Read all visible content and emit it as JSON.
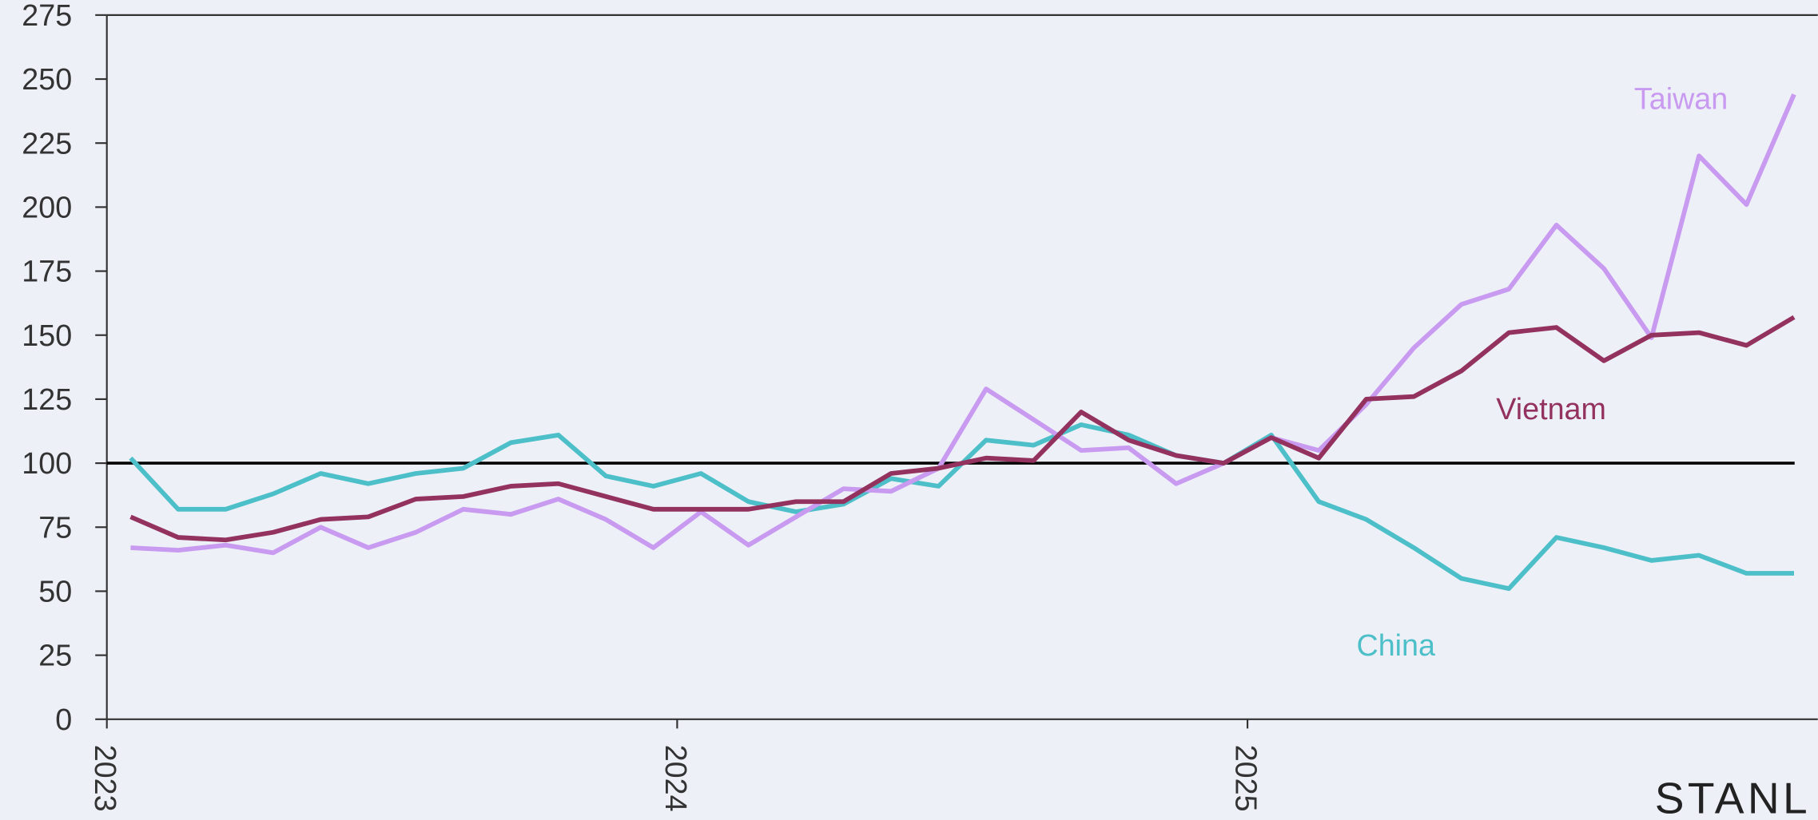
{
  "chart_data": {
    "type": "line",
    "x": [
      "2023-01",
      "2023-02",
      "2023-03",
      "2023-04",
      "2023-05",
      "2023-06",
      "2023-07",
      "2023-08",
      "2023-09",
      "2023-10",
      "2023-11",
      "2023-12",
      "2024-01",
      "2024-02",
      "2024-03",
      "2024-04",
      "2024-05",
      "2024-06",
      "2024-07",
      "2024-08",
      "2024-09",
      "2024-10",
      "2024-11",
      "2024-12",
      "2025-01",
      "2025-02",
      "2025-03",
      "2025-04",
      "2025-05",
      "2025-06",
      "2025-07",
      "2025-08",
      "2025-09",
      "2025-10",
      "2025-11",
      "2025-12"
    ],
    "series": [
      {
        "name": "China",
        "color": "#4dbfc8",
        "values": [
          102,
          82,
          82,
          88,
          96,
          92,
          96,
          98,
          108,
          111,
          95,
          91,
          96,
          85,
          81,
          84,
          94,
          91,
          109,
          107,
          115,
          111,
          103,
          100,
          111,
          85,
          78,
          67,
          55,
          51,
          71,
          67,
          62,
          64,
          57,
          57
        ]
      },
      {
        "name": "Taiwan",
        "color": "#c89af0",
        "values": [
          67,
          66,
          68,
          65,
          75,
          67,
          73,
          82,
          80,
          86,
          78,
          67,
          81,
          68,
          79,
          90,
          89,
          98,
          129,
          117,
          105,
          106,
          92,
          100,
          110,
          105,
          123,
          145,
          162,
          168,
          193,
          176,
          149,
          220,
          201,
          244
        ]
      },
      {
        "name": "Vietnam",
        "color": "#93325e",
        "values": [
          79,
          71,
          70,
          73,
          78,
          79,
          86,
          87,
          91,
          92,
          87,
          82,
          82,
          82,
          85,
          85,
          96,
          98,
          102,
          101,
          120,
          109,
          103,
          100,
          110,
          102,
          125,
          126,
          136,
          151,
          153,
          140,
          150,
          151,
          146,
          157
        ]
      }
    ],
    "ylim": [
      0,
      275
    ],
    "yticks": [
      0,
      25,
      50,
      75,
      100,
      125,
      150,
      175,
      200,
      225,
      250,
      275
    ],
    "xticks": [
      {
        "value": "2023-01",
        "label": "2023"
      },
      {
        "value": "2024-01",
        "label": "2024"
      },
      {
        "value": "2025-01",
        "label": "2025"
      }
    ],
    "reference_line": 100,
    "logo": "STANL"
  }
}
